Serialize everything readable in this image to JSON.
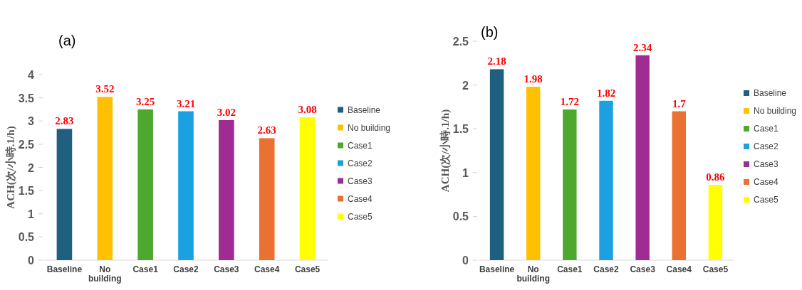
{
  "chart_data": [
    {
      "type": "bar",
      "title": "(a)",
      "ylabel": "ACH(次/小時.1/h)",
      "categories": [
        "Baseline",
        "No building",
        "Case1",
        "Case2",
        "Case3",
        "Case4",
        "Case5"
      ],
      "series": [
        {
          "name": "Baseline",
          "color": "#1f5f7f",
          "values": [
            2.83,
            null,
            null,
            null,
            null,
            null,
            null
          ]
        },
        {
          "name": "No building",
          "color": "#ffc000",
          "values": [
            null,
            3.52,
            null,
            null,
            null,
            null,
            null
          ]
        },
        {
          "name": "Case1",
          "color": "#4ea72e",
          "values": [
            null,
            null,
            3.25,
            null,
            null,
            null,
            null
          ]
        },
        {
          "name": "Case2",
          "color": "#1ba1e2",
          "values": [
            null,
            null,
            null,
            3.21,
            null,
            null,
            null
          ]
        },
        {
          "name": "Case3",
          "color": "#a02b93",
          "values": [
            null,
            null,
            null,
            null,
            3.02,
            null,
            null
          ]
        },
        {
          "name": "Case4",
          "color": "#e97132",
          "values": [
            null,
            null,
            null,
            null,
            null,
            2.63,
            null
          ]
        },
        {
          "name": "Case5",
          "color": "#ffff00",
          "values": [
            null,
            null,
            null,
            null,
            null,
            null,
            3.08
          ]
        }
      ],
      "ylim": [
        0,
        4
      ],
      "yticks": [
        0,
        0.5,
        1,
        1.5,
        2,
        2.5,
        3,
        3.5,
        4
      ],
      "data_labels": true,
      "legend": "right"
    },
    {
      "type": "bar",
      "title": "(b)",
      "ylabel": "ACH(次/小時.1/h)",
      "categories": [
        "Baseline",
        "No building",
        "Case1",
        "Case2",
        "Case3",
        "Case4",
        "Case5"
      ],
      "series": [
        {
          "name": "Baseline",
          "color": "#1f5f7f",
          "values": [
            2.18,
            null,
            null,
            null,
            null,
            null,
            null
          ]
        },
        {
          "name": "No building",
          "color": "#ffc000",
          "values": [
            null,
            1.98,
            null,
            null,
            null,
            null,
            null
          ]
        },
        {
          "name": "Case1",
          "color": "#4ea72e",
          "values": [
            null,
            null,
            1.72,
            null,
            null,
            null,
            null
          ]
        },
        {
          "name": "Case2",
          "color": "#1ba1e2",
          "values": [
            null,
            null,
            null,
            1.82,
            null,
            null,
            null
          ]
        },
        {
          "name": "Case3",
          "color": "#a02b93",
          "values": [
            null,
            null,
            null,
            null,
            2.34,
            null,
            null
          ]
        },
        {
          "name": "Case4",
          "color": "#e97132",
          "values": [
            null,
            null,
            null,
            null,
            null,
            1.7,
            null
          ]
        },
        {
          "name": "Case5",
          "color": "#ffff00",
          "values": [
            null,
            null,
            null,
            null,
            null,
            null,
            0.86
          ]
        }
      ],
      "ylim": [
        0,
        2.5
      ],
      "yticks": [
        0,
        0.5,
        1,
        1.5,
        2,
        2.5
      ],
      "data_labels": true,
      "legend": "right"
    }
  ]
}
